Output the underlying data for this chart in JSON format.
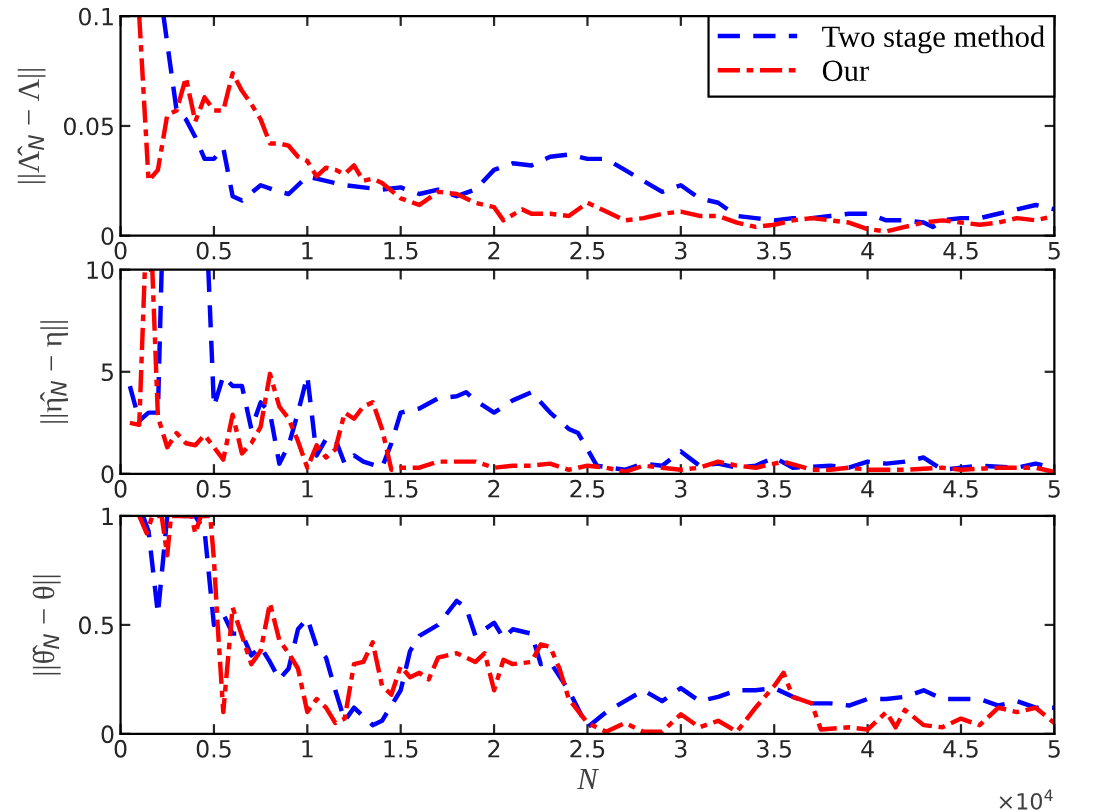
{
  "chart_data": [
    {
      "type": "line",
      "ylabel": "||Λ̂$_{N}$ − Λ||",
      "xlim": [
        0,
        5
      ],
      "ylim": [
        0,
        0.1
      ],
      "xticks": [
        0,
        0.5,
        1,
        1.5,
        2,
        2.5,
        3,
        3.5,
        4,
        4.5,
        5
      ],
      "yticks": [
        0,
        0.05,
        0.1
      ],
      "grid": false,
      "legend": "top right",
      "series": [
        {
          "name": "Two stage method",
          "color": "#0000ff",
          "line_style": "dashed",
          "x": [
            0.23,
            0.3,
            0.35,
            0.4,
            0.45,
            0.5,
            0.55,
            0.6,
            0.65,
            0.75,
            0.85,
            0.9,
            1.0,
            1.1,
            1.2,
            1.3,
            1.4,
            1.5,
            1.6,
            1.7,
            1.8,
            1.9,
            2.0,
            2.1,
            2.2,
            2.3,
            2.4,
            2.5,
            2.6,
            2.7,
            2.8,
            2.9,
            3.0,
            3.1,
            3.2,
            3.3,
            3.4,
            3.5,
            3.6,
            3.7,
            3.8,
            3.9,
            4.0,
            4.1,
            4.2,
            4.3,
            4.35,
            4.4,
            4.5,
            4.6,
            4.7,
            4.8,
            4.9,
            5.0
          ],
          "values": [
            0.1,
            0.057,
            0.053,
            0.045,
            0.035,
            0.035,
            0.04,
            0.018,
            0.016,
            0.023,
            0.02,
            0.019,
            0.027,
            0.025,
            0.023,
            0.022,
            0.021,
            0.022,
            0.019,
            0.021,
            0.018,
            0.021,
            0.03,
            0.033,
            0.032,
            0.036,
            0.037,
            0.035,
            0.035,
            0.03,
            0.025,
            0.02,
            0.023,
            0.017,
            0.015,
            0.009,
            0.008,
            0.007,
            0.008,
            0.008,
            0.009,
            0.01,
            0.01,
            0.007,
            0.007,
            0.006,
            0.004,
            0.007,
            0.008,
            0.008,
            0.01,
            0.012,
            0.014,
            0.012
          ]
        },
        {
          "name": "Our",
          "color": "#ff0000",
          "line_style": "dashdot",
          "x": [
            0.1,
            0.15,
            0.2,
            0.25,
            0.3,
            0.35,
            0.4,
            0.45,
            0.5,
            0.55,
            0.6,
            0.65,
            0.7,
            0.75,
            0.8,
            0.85,
            0.9,
            0.95,
            1.0,
            1.05,
            1.1,
            1.15,
            1.2,
            1.25,
            1.3,
            1.35,
            1.4,
            1.5,
            1.6,
            1.7,
            1.8,
            1.9,
            2.0,
            2.05,
            2.15,
            2.2,
            2.3,
            2.4,
            2.5,
            2.6,
            2.7,
            2.8,
            2.9,
            3.0,
            3.1,
            3.2,
            3.3,
            3.4,
            3.5,
            3.6,
            3.7,
            3.8,
            3.9,
            4.0,
            4.1,
            4.2,
            4.3,
            4.4,
            4.5,
            4.6,
            4.7,
            4.8,
            4.9,
            5.0
          ],
          "values": [
            0.1,
            0.025,
            0.03,
            0.055,
            0.057,
            0.072,
            0.052,
            0.063,
            0.057,
            0.057,
            0.074,
            0.066,
            0.06,
            0.053,
            0.042,
            0.042,
            0.041,
            0.036,
            0.034,
            0.027,
            0.031,
            0.03,
            0.028,
            0.032,
            0.025,
            0.026,
            0.024,
            0.017,
            0.014,
            0.02,
            0.019,
            0.015,
            0.013,
            0.007,
            0.012,
            0.01,
            0.01,
            0.009,
            0.015,
            0.011,
            0.007,
            0.008,
            0.01,
            0.011,
            0.009,
            0.009,
            0.006,
            0.004,
            0.005,
            0.007,
            0.008,
            0.007,
            0.006,
            0.003,
            0.002,
            0.004,
            0.006,
            0.007,
            0.006,
            0.005,
            0.006,
            0.008,
            0.007,
            0.009
          ]
        }
      ]
    },
    {
      "type": "line",
      "ylabel": "||η̂$_{N}$ − η||",
      "xlim": [
        0,
        5
      ],
      "ylim": [
        0,
        10
      ],
      "xticks": [
        0,
        0.5,
        1,
        1.5,
        2,
        2.5,
        3,
        3.5,
        4,
        4.5,
        5
      ],
      "yticks": [
        0,
        5,
        10
      ],
      "grid": false,
      "series": [
        {
          "color": "#0000ff",
          "line_style": "dashed",
          "x": [
            0.05,
            0.1,
            0.15,
            0.2,
            0.22,
            0.35,
            0.47,
            0.5,
            0.55,
            0.6,
            0.65,
            0.7,
            0.75,
            0.8,
            0.85,
            0.9,
            0.95,
            1.0,
            1.05,
            1.1,
            1.15,
            1.2,
            1.25,
            1.3,
            1.4,
            1.45,
            1.5,
            1.6,
            1.7,
            1.8,
            1.85,
            1.9,
            2.0,
            2.1,
            2.2,
            2.3,
            2.4,
            2.45,
            2.55,
            2.7,
            2.8,
            2.9,
            3.0,
            3.1,
            3.2,
            3.3,
            3.4,
            3.5,
            3.6,
            3.8,
            3.9,
            4.0,
            4.1,
            4.2,
            4.3,
            4.4,
            4.6,
            4.8,
            4.9,
            5.0
          ],
          "values": [
            4.3,
            2.6,
            3.0,
            3.0,
            10,
            null,
            10,
            3.3,
            4.8,
            4.3,
            4.3,
            2.2,
            3.5,
            3.0,
            0.5,
            1.4,
            3.0,
            4.8,
            0.9,
            1.7,
            1.7,
            0.5,
            0.9,
            0.6,
            0.3,
            1.5,
            3.0,
            3.2,
            3.7,
            3.8,
            4.0,
            3.6,
            3.0,
            3.6,
            4.0,
            3.0,
            2.2,
            2.0,
            0.4,
            0.2,
            0.5,
            0.4,
            1.1,
            0.4,
            0.5,
            0.3,
            0.4,
            0.8,
            0.3,
            0.4,
            0.3,
            0.6,
            0.5,
            0.6,
            0.8,
            0.2,
            0.4,
            0.3,
            0.5,
            0.3
          ]
        },
        {
          "color": "#ff0000",
          "line_style": "dashdot",
          "x": [
            0.05,
            0.1,
            0.13,
            0.17,
            0.2,
            0.25,
            0.3,
            0.35,
            0.4,
            0.45,
            0.5,
            0.55,
            0.6,
            0.65,
            0.7,
            0.75,
            0.8,
            0.85,
            0.9,
            0.95,
            1.0,
            1.05,
            1.1,
            1.15,
            1.2,
            1.25,
            1.3,
            1.35,
            1.4,
            1.45,
            1.5,
            1.6,
            1.7,
            1.8,
            1.9,
            2.0,
            2.1,
            2.2,
            2.3,
            2.4,
            2.5,
            2.6,
            2.7,
            2.8,
            2.9,
            3.0,
            3.1,
            3.2,
            3.3,
            3.4,
            3.55,
            3.7,
            3.8,
            3.9,
            4.0,
            4.2,
            4.4,
            4.5,
            4.7,
            4.9,
            5.0
          ],
          "values": [
            2.5,
            2.4,
            10,
            10,
            2.8,
            1.3,
            2.0,
            1.5,
            1.4,
            1.9,
            1.3,
            0.7,
            2.9,
            1.0,
            1.5,
            2.3,
            4.9,
            3.3,
            2.7,
            1.6,
            0.3,
            1.4,
            0.8,
            1.2,
            3.0,
            2.7,
            3.3,
            3.5,
            2.2,
            0.2,
            0.3,
            0.3,
            0.6,
            0.6,
            0.6,
            0.3,
            0.4,
            0.4,
            0.5,
            0.2,
            0.4,
            0.3,
            0.1,
            0.4,
            0.3,
            0.2,
            0.3,
            0.6,
            0.4,
            0.3,
            0.6,
            0.2,
            0.2,
            0.3,
            0.2,
            0.2,
            0.3,
            0.2,
            0.3,
            0.3,
            0.1
          ]
        }
      ]
    },
    {
      "type": "line",
      "ylabel": "||θ̂$_{N}$ − θ||",
      "xlabel": "N",
      "annotations": [
        "×10$^{4}$"
      ],
      "xlim": [
        0,
        5
      ],
      "ylim": [
        0,
        1
      ],
      "xticks": [
        0,
        0.5,
        1,
        1.5,
        2,
        2.5,
        3,
        3.5,
        4,
        4.5,
        5
      ],
      "yticks": [
        0,
        0.5,
        1
      ],
      "grid": false,
      "series": [
        {
          "color": "#0000ff",
          "line_style": "dashed",
          "x": [
            0.12,
            0.15,
            0.2,
            0.25,
            0.3,
            0.4,
            0.45,
            0.5,
            0.55,
            0.6,
            0.65,
            0.7,
            0.75,
            0.8,
            0.85,
            0.9,
            0.95,
            1.0,
            1.05,
            1.1,
            1.15,
            1.2,
            1.25,
            1.35,
            1.4,
            1.5,
            1.55,
            1.6,
            1.7,
            1.8,
            1.85,
            1.9,
            2.0,
            2.05,
            2.1,
            2.2,
            2.25,
            2.3,
            2.4,
            2.5,
            2.6,
            2.7,
            2.8,
            2.9,
            3.0,
            3.1,
            3.2,
            3.3,
            3.4,
            3.5,
            3.6,
            3.7,
            3.8,
            3.9,
            4.0,
            4.1,
            4.2,
            4.3,
            4.4,
            4.6,
            4.7,
            4.8,
            4.9,
            5.0
          ],
          "values": [
            1.0,
            0.93,
            0.55,
            1.0,
            1.0,
            1.0,
            0.93,
            0.5,
            0.55,
            0.46,
            0.46,
            0.36,
            0.4,
            0.33,
            0.25,
            0.3,
            0.48,
            0.53,
            0.4,
            0.35,
            0.2,
            0.06,
            0.12,
            0.04,
            0.06,
            0.2,
            0.38,
            0.45,
            0.5,
            0.61,
            0.58,
            0.45,
            0.51,
            0.44,
            0.48,
            0.46,
            0.32,
            0.33,
            0.2,
            0.03,
            0.1,
            0.15,
            0.2,
            0.15,
            0.21,
            0.15,
            0.17,
            0.2,
            0.2,
            0.21,
            0.17,
            0.14,
            0.14,
            0.13,
            0.16,
            0.16,
            0.17,
            0.2,
            0.16,
            0.16,
            0.13,
            0.15,
            0.12,
            0.12
          ]
        },
        {
          "color": "#ff0000",
          "line_style": "dashdot",
          "x": [
            0.1,
            0.14,
            0.17,
            0.22,
            0.25,
            0.27,
            0.38,
            0.4,
            0.43,
            0.48,
            0.5,
            0.52,
            0.55,
            0.6,
            0.65,
            0.7,
            0.75,
            0.8,
            0.85,
            0.9,
            0.95,
            1.0,
            1.05,
            1.1,
            1.15,
            1.2,
            1.25,
            1.3,
            1.35,
            1.4,
            1.45,
            1.5,
            1.55,
            1.6,
            1.65,
            1.7,
            1.8,
            1.9,
            1.95,
            2.0,
            2.05,
            2.1,
            2.2,
            2.25,
            2.3,
            2.35,
            2.4,
            2.5,
            2.6,
            2.7,
            2.8,
            2.9,
            3.0,
            3.1,
            3.2,
            3.3,
            3.4,
            3.5,
            3.55,
            3.6,
            3.7,
            3.75,
            3.9,
            4.0,
            4.1,
            4.15,
            4.2,
            4.3,
            4.4,
            4.5,
            4.6,
            4.7,
            4.8,
            4.9,
            5.0
          ],
          "values": [
            1.0,
            0.92,
            1.0,
            1.0,
            0.82,
            1.0,
            1.0,
            0.92,
            1.0,
            1.0,
            0.8,
            0.5,
            0.1,
            0.58,
            0.45,
            0.32,
            0.38,
            0.6,
            0.43,
            0.37,
            0.3,
            0.1,
            0.16,
            0.12,
            0.05,
            0.07,
            0.32,
            0.33,
            0.42,
            0.22,
            0.18,
            0.31,
            0.26,
            0.28,
            0.25,
            0.35,
            0.37,
            0.33,
            0.37,
            0.2,
            0.34,
            0.32,
            0.33,
            0.41,
            0.4,
            0.3,
            0.16,
            0.05,
            0.01,
            0.05,
            0.01,
            0.01,
            0.09,
            0.03,
            0.06,
            0.01,
            0.12,
            0.22,
            0.28,
            0.17,
            0.14,
            0.02,
            0.03,
            0.02,
            0.1,
            0.03,
            0.11,
            0.04,
            0.03,
            0.07,
            0.04,
            0.12,
            0.1,
            0.12,
            0.05
          ]
        }
      ]
    }
  ]
}
